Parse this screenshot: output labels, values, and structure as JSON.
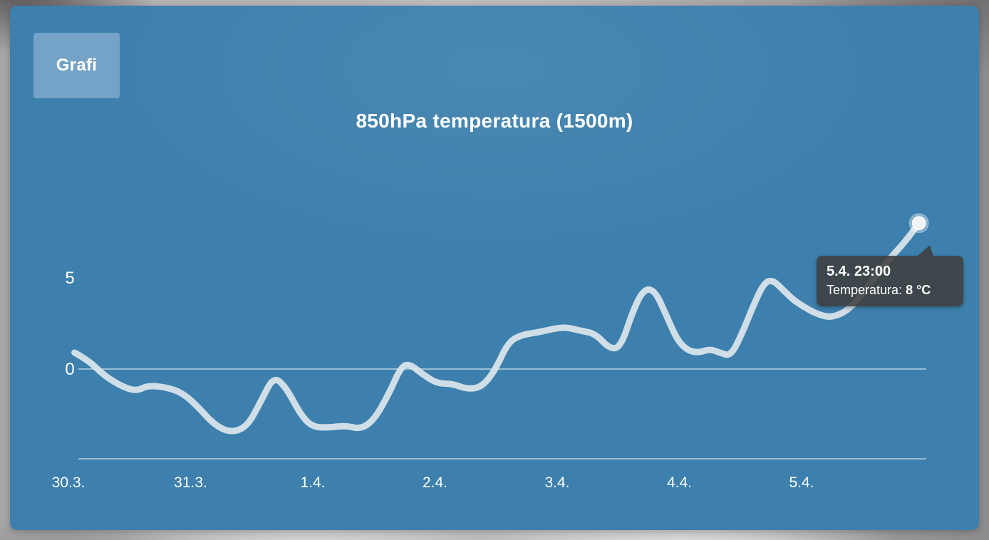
{
  "tab": {
    "label": "Grafi"
  },
  "colors": {
    "panel_blue": "#3d80ad",
    "tab_blue": "#74a3c7",
    "line": "#dce5ec",
    "axis": "rgba(255,255,255,0.75)",
    "tooltip_bg": "rgba(62,62,62,0.88)",
    "text": "#ffffff"
  },
  "chart_data": {
    "type": "line",
    "title": "850hPa temperatura (1500m)",
    "ylabel": "",
    "xlabel": "",
    "unit": "°C",
    "ylim": [
      -4.9,
      9.4
    ],
    "grid": "zero-line-only",
    "legend": "none",
    "x_ticks": [
      {
        "label": "30.3.",
        "day": 0
      },
      {
        "label": "31.3.",
        "day": 1
      },
      {
        "label": "1.4.",
        "day": 2
      },
      {
        "label": "2.4.",
        "day": 3
      },
      {
        "label": "3.4.",
        "day": 4
      },
      {
        "label": "4.4.",
        "day": 5
      },
      {
        "label": "5.4.",
        "day": 6
      }
    ],
    "y_ticks": [
      {
        "label": "5",
        "value": 5,
        "gridline": false
      },
      {
        "label": "0",
        "value": 0,
        "gridline": true
      }
    ],
    "series": [
      {
        "name": "Temperatura",
        "points": [
          [
            0.05,
            0.9
          ],
          [
            0.16,
            0.5
          ],
          [
            0.3,
            -0.4
          ],
          [
            0.45,
            -1.0
          ],
          [
            0.56,
            -1.2
          ],
          [
            0.65,
            -0.9
          ],
          [
            0.8,
            -1.0
          ],
          [
            0.93,
            -1.3
          ],
          [
            1.05,
            -2.0
          ],
          [
            1.2,
            -3.1
          ],
          [
            1.34,
            -3.5
          ],
          [
            1.47,
            -3.1
          ],
          [
            1.58,
            -1.7
          ],
          [
            1.68,
            -0.4
          ],
          [
            1.78,
            -1.0
          ],
          [
            1.9,
            -2.5
          ],
          [
            2.0,
            -3.2
          ],
          [
            2.15,
            -3.2
          ],
          [
            2.27,
            -3.1
          ],
          [
            2.39,
            -3.3
          ],
          [
            2.5,
            -2.8
          ],
          [
            2.62,
            -1.4
          ],
          [
            2.72,
            0.1
          ],
          [
            2.79,
            0.3
          ],
          [
            2.9,
            -0.3
          ],
          [
            3.02,
            -0.8
          ],
          [
            3.14,
            -0.8
          ],
          [
            3.26,
            -1.1
          ],
          [
            3.38,
            -1.0
          ],
          [
            3.49,
            -0.1
          ],
          [
            3.6,
            1.5
          ],
          [
            3.72,
            1.9
          ],
          [
            3.84,
            2.0
          ],
          [
            3.96,
            2.2
          ],
          [
            4.07,
            2.3
          ],
          [
            4.19,
            2.1
          ],
          [
            4.31,
            1.95
          ],
          [
            4.43,
            1.1
          ],
          [
            4.52,
            1.2
          ],
          [
            4.62,
            3.2
          ],
          [
            4.71,
            4.4
          ],
          [
            4.8,
            4.3
          ],
          [
            4.89,
            3.0
          ],
          [
            4.98,
            1.6
          ],
          [
            5.07,
            1.0
          ],
          [
            5.16,
            0.9
          ],
          [
            5.25,
            1.1
          ],
          [
            5.33,
            0.9
          ],
          [
            5.42,
            0.7
          ],
          [
            5.51,
            1.9
          ],
          [
            5.6,
            3.4
          ],
          [
            5.69,
            4.7
          ],
          [
            5.76,
            4.9
          ],
          [
            5.84,
            4.4
          ],
          [
            5.93,
            3.8
          ],
          [
            6.02,
            3.4
          ],
          [
            6.13,
            3.0
          ],
          [
            6.25,
            2.8
          ],
          [
            6.4,
            3.3
          ],
          [
            6.55,
            4.6
          ],
          [
            6.7,
            5.9
          ],
          [
            6.85,
            7.0
          ],
          [
            6.96,
            8.0
          ]
        ]
      }
    ],
    "end_marker": {
      "day": 6.96,
      "value": 8
    },
    "tooltip": {
      "time": "5.4. 23:00",
      "label": "Temperatura:",
      "value": "8 °C"
    }
  }
}
